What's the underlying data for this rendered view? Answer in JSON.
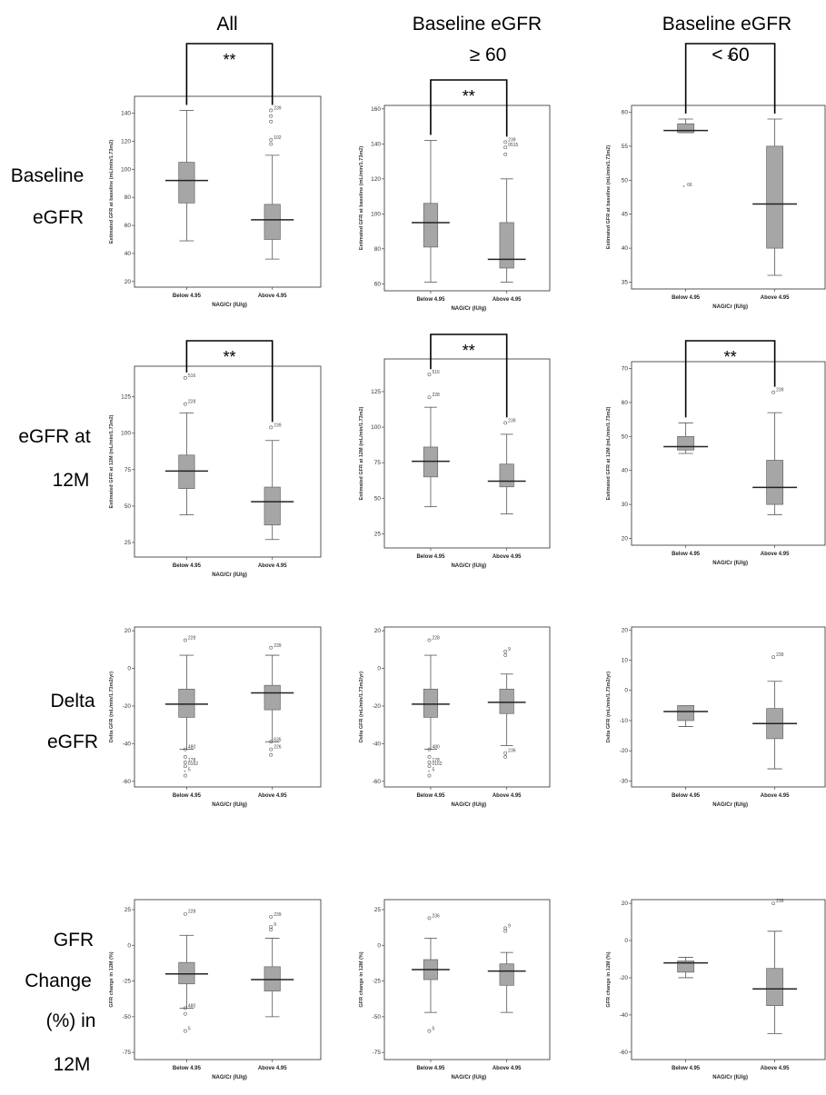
{
  "columns": [
    "All",
    "Baseline eGFR",
    "Baseline eGFR"
  ],
  "column_lines2": [
    "",
    "≥ 60",
    "< 60"
  ],
  "rows": [
    [
      "Baseline",
      "eGFR"
    ],
    [
      "eGFR at",
      "12M"
    ],
    [
      "Delta",
      "eGFR"
    ],
    [
      "GFR",
      "Change",
      "(%) in",
      "12M"
    ]
  ],
  "chart_data": [
    {
      "type": "box",
      "row": 0,
      "col": 0,
      "ylabel": "Estimated GFR at baseline (mL/min/1.73m2)",
      "xlabel": "NAG/Cr (IU/g)",
      "categories": [
        "Below 4.95",
        "Above 4.95"
      ],
      "yticks": [
        20,
        40,
        60,
        80,
        100,
        120,
        140
      ],
      "ylim": [
        16,
        152
      ],
      "significance": "**",
      "boxes": [
        {
          "whislo": 49,
          "q1": 76,
          "med": 92,
          "q3": 105,
          "whishi": 142,
          "outliers": []
        },
        {
          "whislo": 36,
          "q1": 50,
          "med": 64,
          "q3": 75,
          "whishi": 110,
          "outliers": [
            {
              "y": 142,
              "label": "239"
            },
            {
              "y": 138,
              "label": ""
            },
            {
              "y": 134,
              "label": ""
            },
            {
              "y": 121,
              "label": "102"
            },
            {
              "y": 118,
              "label": ""
            }
          ]
        }
      ]
    },
    {
      "type": "box",
      "row": 0,
      "col": 1,
      "ylabel": "Estimated GFR at baseline (mL/min/1.73m2)",
      "xlabel": "NAG/Cr (IU/g)",
      "categories": [
        "Below 4.95",
        "Above 4.95"
      ],
      "yticks": [
        60,
        80,
        100,
        120,
        140,
        160
      ],
      "ylim": [
        56,
        162
      ],
      "significance": "**",
      "boxes": [
        {
          "whislo": 61,
          "q1": 81,
          "med": 95,
          "q3": 106,
          "whishi": 142,
          "outliers": []
        },
        {
          "whislo": 61,
          "q1": 69,
          "med": 74,
          "q3": 95,
          "whishi": 120,
          "outliers": [
            {
              "y": 141,
              "label": "239"
            },
            {
              "y": 138,
              "label": "0515"
            },
            {
              "y": 134,
              "label": ""
            }
          ]
        }
      ]
    },
    {
      "type": "box",
      "row": 0,
      "col": 2,
      "ylabel": "Estimated GFR at baseline (mL/min/1.73m2)",
      "xlabel": "NAG/Cr (IU/g)",
      "categories": [
        "Below 4.95",
        "Above 4.95"
      ],
      "yticks": [
        35,
        40,
        45,
        50,
        55,
        60
      ],
      "ylim": [
        34,
        61
      ],
      "significance": "*",
      "boxes": [
        {
          "whislo": 57,
          "q1": 57,
          "med": 57.3,
          "q3": 58.3,
          "whishi": 59,
          "outliers": [
            {
              "y": 49,
              "label": "66",
              "star": true
            }
          ]
        },
        {
          "whislo": 36,
          "q1": 40,
          "med": 46.5,
          "q3": 55,
          "whishi": 59,
          "outliers": []
        }
      ]
    },
    {
      "type": "box",
      "row": 1,
      "col": 0,
      "ylabel": "Estimated GFR at 12M (mL/min/1.73m2)",
      "xlabel": "NAG/Cr (IU/g)",
      "categories": [
        "Below 4.95",
        "Above 4.95"
      ],
      "yticks": [
        25,
        50,
        75,
        100,
        125
      ],
      "ylim": [
        15,
        146
      ],
      "significance": "**",
      "boxes": [
        {
          "whislo": 44,
          "q1": 62,
          "med": 74,
          "q3": 85,
          "whishi": 114,
          "outliers": [
            {
              "y": 138,
              "label": "516"
            },
            {
              "y": 120,
              "label": "228"
            }
          ]
        },
        {
          "whislo": 27,
          "q1": 37,
          "med": 53,
          "q3": 63,
          "whishi": 95,
          "outliers": [
            {
              "y": 104,
              "label": "239"
            }
          ]
        }
      ]
    },
    {
      "type": "box",
      "row": 1,
      "col": 1,
      "ylabel": "Estimated GFR at 12M (mL/min/1.73m2)",
      "xlabel": "NAG/Cr (IU/g)",
      "categories": [
        "Below 4.95",
        "Above 4.95"
      ],
      "yticks": [
        25,
        50,
        75,
        100,
        125
      ],
      "ylim": [
        15,
        148
      ],
      "significance": "**",
      "boxes": [
        {
          "whislo": 44,
          "q1": 65,
          "med": 76,
          "q3": 86,
          "whishi": 114,
          "outliers": [
            {
              "y": 137,
              "label": "516"
            },
            {
              "y": 121,
              "label": "228"
            }
          ]
        },
        {
          "whislo": 39,
          "q1": 58,
          "med": 62,
          "q3": 74,
          "whishi": 95,
          "outliers": [
            {
              "y": 103,
              "label": "239"
            }
          ]
        }
      ]
    },
    {
      "type": "box",
      "row": 1,
      "col": 2,
      "ylabel": "Estimated GFR at 12M (mL/min/1.73m2)",
      "xlabel": "NAG/Cr (IU/g)",
      "categories": [
        "Below 4.95",
        "Above 4.95"
      ],
      "yticks": [
        20,
        30,
        40,
        50,
        60,
        70
      ],
      "ylim": [
        18,
        72
      ],
      "significance": "**",
      "boxes": [
        {
          "whislo": 45,
          "q1": 46,
          "med": 47,
          "q3": 50,
          "whishi": 54,
          "outliers": []
        },
        {
          "whislo": 27,
          "q1": 30,
          "med": 35,
          "q3": 43,
          "whishi": 57,
          "outliers": [
            {
              "y": 63,
              "label": "239"
            }
          ]
        }
      ]
    },
    {
      "type": "box",
      "row": 2,
      "col": 0,
      "ylabel": "Delta GFR (mL/min/1.73m2/yr)",
      "xlabel": "NAG/Cr (IU/g)",
      "categories": [
        "Below 4.95",
        "Above 4.95"
      ],
      "yticks": [
        -60,
        -40,
        -20,
        0,
        20
      ],
      "ylim": [
        -63,
        22
      ],
      "significance": "",
      "boxes": [
        {
          "whislo": -43,
          "q1": -26,
          "med": -19,
          "q3": -11,
          "whishi": 7,
          "outliers": [
            {
              "y": 15,
              "label": "228"
            },
            {
              "y": -43,
              "label": "480"
            },
            {
              "y": -47,
              "label": ""
            },
            {
              "y": -50,
              "label": "178"
            },
            {
              "y": -52,
              "label": "0162"
            },
            {
              "y": -57,
              "label": ""
            },
            {
              "y": -55,
              "label": "5",
              "star": true
            }
          ]
        },
        {
          "whislo": -39,
          "q1": -22,
          "med": -13,
          "q3": -9,
          "whishi": 7,
          "outliers": [
            {
              "y": 11,
              "label": "239"
            },
            {
              "y": -39,
              "label": "635"
            },
            {
              "y": -43,
              "label": "226"
            },
            {
              "y": -46,
              "label": ""
            }
          ]
        }
      ]
    },
    {
      "type": "box",
      "row": 2,
      "col": 1,
      "ylabel": "Delta GFR (mL/min/1.73m2/yr)",
      "xlabel": "NAG/Cr (IU/g)",
      "categories": [
        "Below 4.95",
        "Above 4.95"
      ],
      "yticks": [
        -60,
        -40,
        -20,
        0,
        20
      ],
      "ylim": [
        -63,
        22
      ],
      "significance": "",
      "boxes": [
        {
          "whislo": -43,
          "q1": -26,
          "med": -19,
          "q3": -11,
          "whishi": 7,
          "outliers": [
            {
              "y": 15,
              "label": "228"
            },
            {
              "y": -43,
              "label": "480"
            },
            {
              "y": -47,
              "label": ""
            },
            {
              "y": -50,
              "label": "178"
            },
            {
              "y": -52,
              "label": "0162"
            },
            {
              "y": -57,
              "label": ""
            },
            {
              "y": -55,
              "label": "5",
              "star": true
            }
          ]
        },
        {
          "whislo": -41,
          "q1": -24,
          "med": -18,
          "q3": -11,
          "whishi": -3,
          "outliers": [
            {
              "y": 9,
              "label": "9"
            },
            {
              "y": 7,
              "label": ""
            },
            {
              "y": -45,
              "label": "236"
            },
            {
              "y": -47,
              "label": ""
            }
          ]
        }
      ]
    },
    {
      "type": "box",
      "row": 2,
      "col": 2,
      "ylabel": "Delta GFR (mL/min/1.73m2/yr)",
      "xlabel": "NAG/Cr (IU/g)",
      "categories": [
        "Below 4.95",
        "Above 4.95"
      ],
      "yticks": [
        -30,
        -20,
        -10,
        0,
        10,
        20
      ],
      "ylim": [
        -32,
        21
      ],
      "significance": "",
      "boxes": [
        {
          "whislo": -12,
          "q1": -10,
          "med": -7,
          "q3": -5,
          "whishi": -5,
          "outliers": []
        },
        {
          "whislo": -26,
          "q1": -16,
          "med": -11,
          "q3": -6,
          "whishi": 3,
          "outliers": [
            {
              "y": 11,
              "label": "239"
            }
          ]
        }
      ]
    },
    {
      "type": "box",
      "row": 3,
      "col": 0,
      "ylabel": "GFR change in 12M (%)",
      "xlabel": "NAG/Cr (IU/g)",
      "categories": [
        "Below 4.95",
        "Above 4.95"
      ],
      "yticks": [
        -75,
        -50,
        -25,
        0,
        25
      ],
      "ylim": [
        -80,
        32
      ],
      "significance": "",
      "boxes": [
        {
          "whislo": -44,
          "q1": -27,
          "med": -20,
          "q3": -12,
          "whishi": 7,
          "outliers": [
            {
              "y": 22,
              "label": "228"
            },
            {
              "y": -44,
              "label": "480"
            },
            {
              "y": -48,
              "label": ""
            },
            {
              "y": -60,
              "label": "5"
            }
          ]
        },
        {
          "whislo": -50,
          "q1": -32,
          "med": -24,
          "q3": -15,
          "whishi": 5,
          "outliers": [
            {
              "y": 20,
              "label": "239"
            },
            {
              "y": 13,
              "label": "9"
            },
            {
              "y": 11,
              "label": ""
            }
          ]
        }
      ]
    },
    {
      "type": "box",
      "row": 3,
      "col": 1,
      "ylabel": "GFR change in 12M (%)",
      "xlabel": "NAG/Cr (IU/g)",
      "categories": [
        "Below 4.95",
        "Above 4.95"
      ],
      "yticks": [
        -75,
        -50,
        -25,
        0,
        25
      ],
      "ylim": [
        -80,
        32
      ],
      "significance": "",
      "boxes": [
        {
          "whislo": -47,
          "q1": -24,
          "med": -17,
          "q3": -10,
          "whishi": 5,
          "outliers": [
            {
              "y": 19,
              "label": "236"
            },
            {
              "y": -60,
              "label": "5"
            }
          ]
        },
        {
          "whislo": -47,
          "q1": -28,
          "med": -18,
          "q3": -13,
          "whishi": -5,
          "outliers": [
            {
              "y": 12,
              "label": "9"
            },
            {
              "y": 10,
              "label": ""
            }
          ]
        }
      ]
    },
    {
      "type": "box",
      "row": 3,
      "col": 2,
      "ylabel": "GFR change in 12M (%)",
      "xlabel": "NAG/Cr (IU/g)",
      "categories": [
        "Below 4.95",
        "Above 4.95"
      ],
      "yticks": [
        -60,
        -40,
        -20,
        0,
        20
      ],
      "ylim": [
        -64,
        22
      ],
      "significance": "",
      "boxes": [
        {
          "whislo": -20,
          "q1": -17,
          "med": -12,
          "q3": -11,
          "whishi": -9,
          "outliers": []
        },
        {
          "whislo": -50,
          "q1": -35,
          "med": -26,
          "q3": -15,
          "whishi": 5,
          "outliers": [
            {
              "y": 20,
              "label": "239"
            }
          ]
        }
      ]
    }
  ]
}
